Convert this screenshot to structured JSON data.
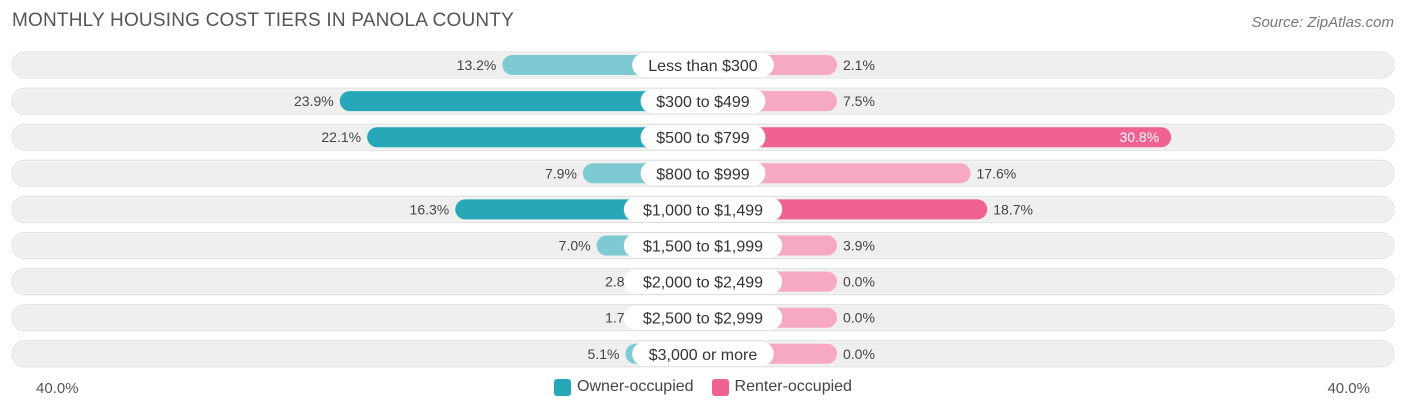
{
  "header": {
    "title": "MONTHLY HOUSING COST TIERS IN PANOLA COUNTY",
    "source": "Source: ZipAtlas.com"
  },
  "axis": {
    "left_label": "40.0%",
    "right_label": "40.0%"
  },
  "legend": {
    "owner": "Owner-occupied",
    "renter": "Renter-occupied"
  },
  "colors": {
    "owner_light": "#7ecad2",
    "owner_dark": "#27a8b8",
    "renter_light": "#f7a8c3",
    "renter_dark": "#f06292",
    "row_bg": "#efefef"
  },
  "chart_data": {
    "type": "bar",
    "orientation": "horizontal-diverging",
    "categories": [
      "Less than $300",
      "$300 to $499",
      "$500 to $799",
      "$800 to $999",
      "$1,000 to $1,499",
      "$1,500 to $1,999",
      "$2,000 to $2,499",
      "$2,500 to $2,999",
      "$3,000 or more"
    ],
    "series": [
      {
        "name": "Owner-occupied",
        "values": [
          13.2,
          23.9,
          22.1,
          7.9,
          16.3,
          7.0,
          2.8,
          1.7,
          5.1
        ]
      },
      {
        "name": "Renter-occupied",
        "values": [
          2.1,
          7.5,
          30.8,
          17.6,
          18.7,
          3.9,
          0.0,
          0.0,
          0.0
        ]
      }
    ],
    "value_labels": {
      "owner": [
        "13.2%",
        "23.9%",
        "22.1%",
        "7.9%",
        "16.3%",
        "7.0%",
        "2.8%",
        "1.7%",
        "5.1%"
      ],
      "renter": [
        "2.1%",
        "7.5%",
        "30.8%",
        "17.6%",
        "18.7%",
        "3.9%",
        "0.0%",
        "0.0%",
        "0.0%"
      ]
    },
    "xlim": [
      -40,
      40
    ],
    "legend_position": "bottom-center"
  }
}
